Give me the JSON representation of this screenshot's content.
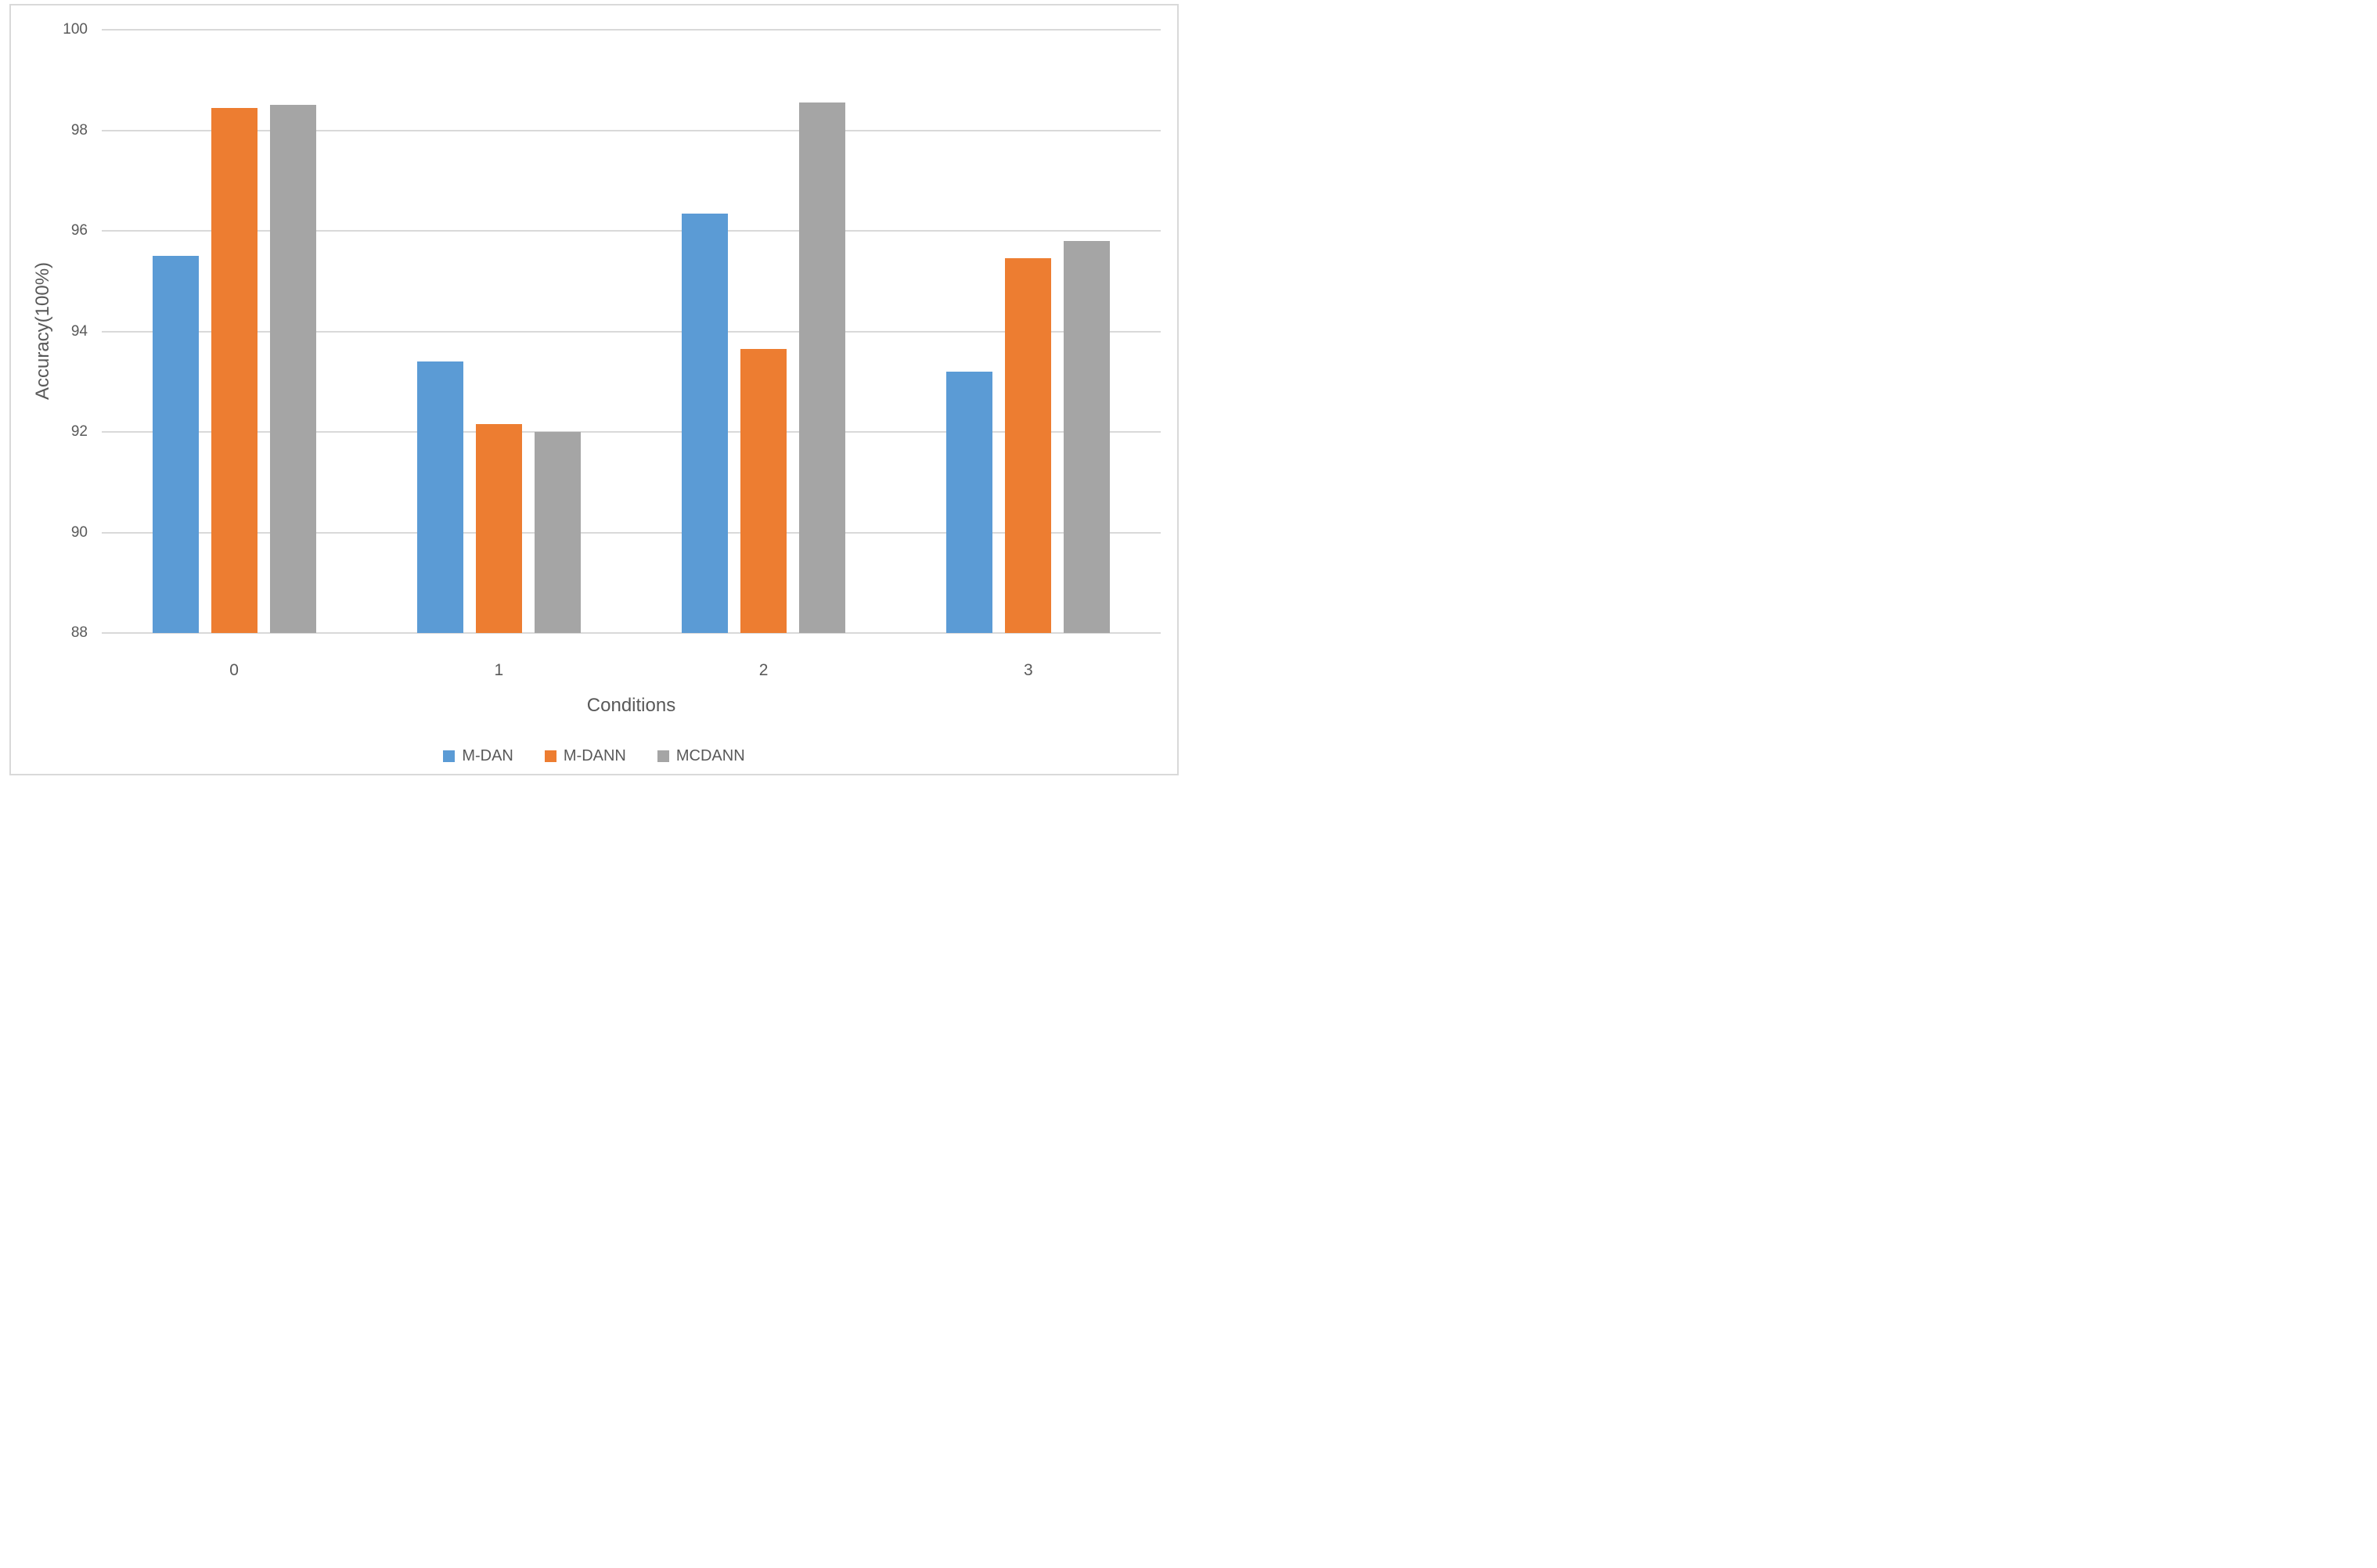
{
  "chart_data": {
    "type": "bar",
    "title": "",
    "xlabel": "Conditions",
    "ylabel": "Accuracy(100%)",
    "categories": [
      "0",
      "1",
      "2",
      "3"
    ],
    "series": [
      {
        "name": "M-DAN",
        "color": "#5B9BD5",
        "values": [
          95.5,
          93.4,
          96.35,
          93.2
        ]
      },
      {
        "name": "M-DANN",
        "color": "#ED7D31",
        "values": [
          98.45,
          92.15,
          93.65,
          95.45
        ]
      },
      {
        "name": "MCDANN",
        "color": "#A5A5A5",
        "values": [
          98.5,
          92.0,
          98.55,
          95.8
        ]
      }
    ],
    "ylim": [
      88,
      100
    ],
    "yticks": [
      88,
      90,
      92,
      94,
      96,
      98,
      100
    ],
    "grid": true,
    "gridline_color": "#D9D9D9",
    "text_color": "#595959",
    "legend_position": "bottom"
  }
}
